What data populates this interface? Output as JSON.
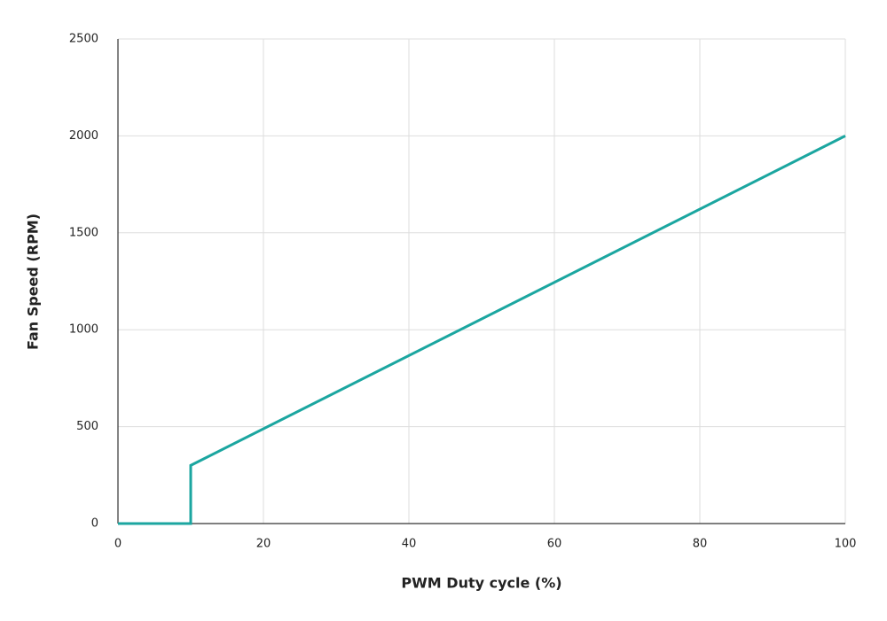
{
  "chart_data": {
    "type": "line",
    "x_label": "PWM Duty cycle (%)",
    "y_label": "Fan Speed (RPM)",
    "x": [
      0,
      10,
      10,
      100
    ],
    "values": [
      0,
      0,
      300,
      2000
    ],
    "color": "#1ba6a0",
    "xlim": [
      0,
      100
    ],
    "xticks": [
      0,
      20,
      40,
      60,
      80,
      100
    ],
    "ylim": [
      0,
      2500
    ],
    "yticks": [
      0,
      500,
      1000,
      1500,
      2000,
      2500
    ],
    "grid": true
  }
}
